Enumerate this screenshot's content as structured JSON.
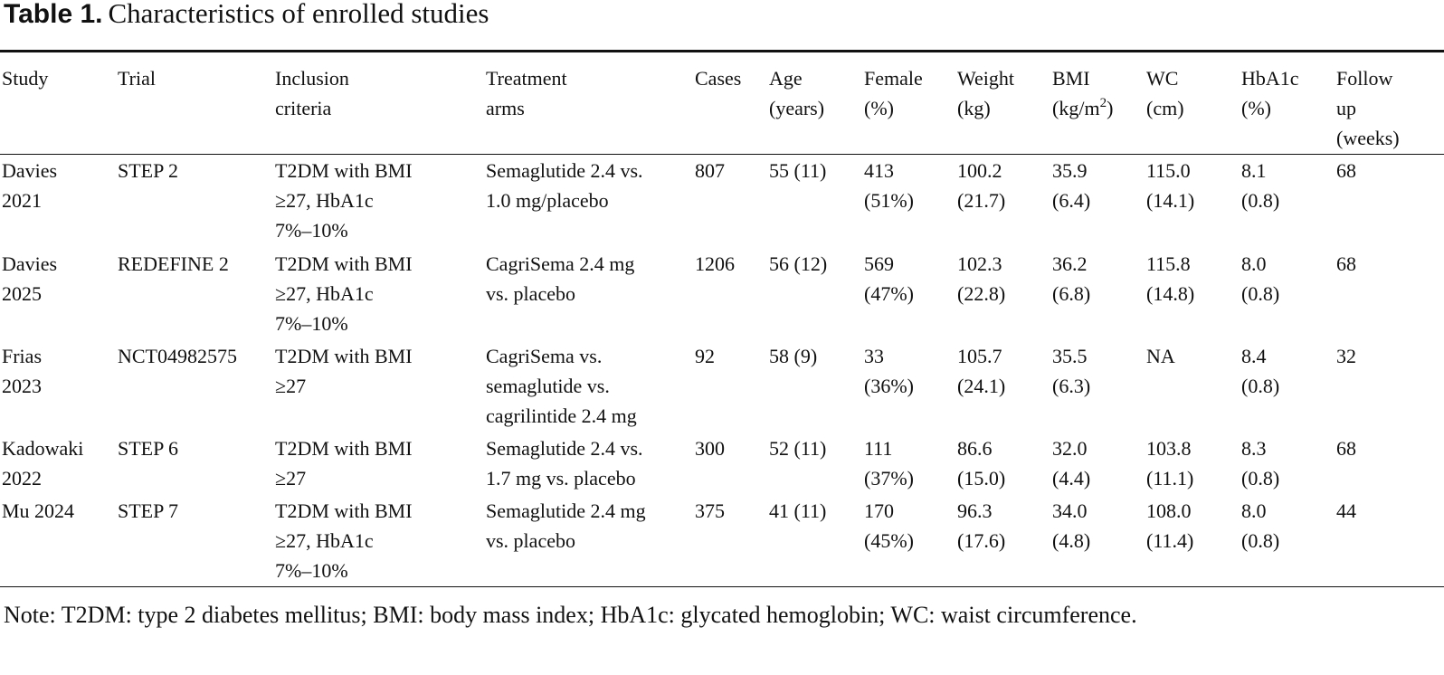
{
  "title": {
    "label": "Table 1.",
    "text": "Characteristics of enrolled studies"
  },
  "header": {
    "study": [
      "Study"
    ],
    "trial": [
      "Trial"
    ],
    "inclusion": [
      "Inclusion",
      "criteria"
    ],
    "treatment": [
      "Treatment",
      "arms"
    ],
    "cases": [
      "Cases"
    ],
    "age": [
      "Age",
      "(years)"
    ],
    "female": [
      "Female",
      "(%)"
    ],
    "weight": [
      "Weight",
      "(kg)"
    ],
    "bmi": [
      "BMI",
      "(kg/m",
      "2",
      ")"
    ],
    "wc": [
      "WC",
      "(cm)"
    ],
    "hba1c": [
      "HbA1c",
      "(%)"
    ],
    "followup": [
      "Follow",
      "up",
      "(weeks)"
    ]
  },
  "rows": [
    {
      "study": [
        "Davies",
        "2021"
      ],
      "trial": [
        "STEP 2"
      ],
      "inclusion": [
        "T2DM with BMI",
        "≥27, HbA1c",
        "7%–10%"
      ],
      "treatment": [
        "Semaglutide 2.4 vs.",
        "1.0 mg/placebo"
      ],
      "cases": [
        "807"
      ],
      "age": [
        "55 (11)"
      ],
      "female": [
        "413",
        "(51%)"
      ],
      "weight": [
        "100.2",
        "(21.7)"
      ],
      "bmi": [
        "35.9",
        "(6.4)"
      ],
      "wc": [
        "115.0",
        "(14.1)"
      ],
      "hba1c": [
        "8.1",
        "(0.8)"
      ],
      "followup": [
        "68"
      ]
    },
    {
      "study": [
        "Davies",
        "2025"
      ],
      "trial": [
        "REDEFINE 2"
      ],
      "inclusion": [
        "T2DM with BMI",
        "≥27, HbA1c",
        "7%–10%"
      ],
      "treatment": [
        "CagriSema 2.4 mg",
        "vs. placebo"
      ],
      "cases": [
        "1206"
      ],
      "age": [
        "56 (12)"
      ],
      "female": [
        "569",
        "(47%)"
      ],
      "weight": [
        "102.3",
        "(22.8)"
      ],
      "bmi": [
        "36.2",
        "(6.8)"
      ],
      "wc": [
        "115.8",
        "(14.8)"
      ],
      "hba1c": [
        "8.0",
        "(0.8)"
      ],
      "followup": [
        "68"
      ]
    },
    {
      "study": [
        "Frias",
        "2023"
      ],
      "trial": [
        "NCT04982575"
      ],
      "inclusion": [
        "T2DM with BMI",
        "≥27"
      ],
      "treatment": [
        "CagriSema vs.",
        "semaglutide vs.",
        "cagrilintide 2.4 mg"
      ],
      "cases": [
        "92"
      ],
      "age": [
        "58 (9)"
      ],
      "female": [
        "33",
        "(36%)"
      ],
      "weight": [
        "105.7",
        "(24.1)"
      ],
      "bmi": [
        "35.5",
        "(6.3)"
      ],
      "wc": [
        "NA"
      ],
      "hba1c": [
        "8.4",
        "(0.8)"
      ],
      "followup": [
        "32"
      ]
    },
    {
      "study": [
        "Kadowaki",
        "2022"
      ],
      "trial": [
        "STEP 6"
      ],
      "inclusion": [
        "T2DM with BMI",
        "≥27"
      ],
      "treatment": [
        "Semaglutide 2.4 vs.",
        "1.7 mg vs. placebo"
      ],
      "cases": [
        "300"
      ],
      "age": [
        "52 (11)"
      ],
      "female": [
        "111",
        "(37%)"
      ],
      "weight": [
        "86.6",
        "(15.0)"
      ],
      "bmi": [
        "32.0",
        "(4.4)"
      ],
      "wc": [
        "103.8",
        "(11.1)"
      ],
      "hba1c": [
        "8.3",
        "(0.8)"
      ],
      "followup": [
        "68"
      ]
    },
    {
      "study": [
        "Mu 2024"
      ],
      "trial": [
        "STEP 7"
      ],
      "inclusion": [
        "T2DM with BMI",
        "≥27, HbA1c",
        "7%–10%"
      ],
      "treatment": [
        "Semaglutide 2.4 mg",
        "vs. placebo"
      ],
      "cases": [
        "375"
      ],
      "age": [
        "41 (11)"
      ],
      "female": [
        "170",
        "(45%)"
      ],
      "weight": [
        "96.3",
        "(17.6)"
      ],
      "bmi": [
        "34.0",
        "(4.8)"
      ],
      "wc": [
        "108.0",
        "(11.4)"
      ],
      "hba1c": [
        "8.0",
        "(0.8)"
      ],
      "followup": [
        "44"
      ]
    }
  ],
  "note": "Note: T2DM: type 2 diabetes mellitus; BMI: body mass index; HbA1c: glycated hemoglobin; WC: waist circumference."
}
